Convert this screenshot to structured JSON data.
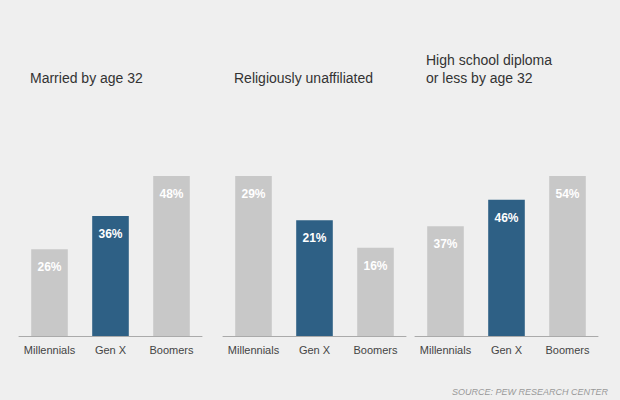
{
  "chart_data": [
    {
      "type": "bar",
      "title": "Married by age 32",
      "categories": [
        "Millennials",
        "Gen X",
        "Boomers"
      ],
      "values": [
        26,
        36,
        48
      ],
      "value_labels": [
        "26%",
        "36%",
        "48%"
      ],
      "colors": [
        "#c8c8c8",
        "#2e6085",
        "#c8c8c8"
      ],
      "ylim": [
        0,
        69.6
      ],
      "grid": false,
      "tick_labels": "x",
      "data_labels": true
    },
    {
      "type": "bar",
      "title": "Religiously unaffiliated",
      "categories": [
        "Millennials",
        "Gen X",
        "Boomers"
      ],
      "values": [
        29,
        21,
        16
      ],
      "value_labels": [
        "29%",
        "21%",
        "16%"
      ],
      "colors": [
        "#c8c8c8",
        "#2e6085",
        "#c8c8c8"
      ],
      "ylim": [
        0,
        42.05
      ],
      "grid": false,
      "tick_labels": "x",
      "data_labels": true
    },
    {
      "type": "bar",
      "title": "High school diploma\nor less by age 32",
      "categories": [
        "Millennials",
        "Gen X",
        "Boomers"
      ],
      "values": [
        37,
        46,
        54
      ],
      "value_labels": [
        "37%",
        "46%",
        "54%"
      ],
      "colors": [
        "#c8c8c8",
        "#2e6085",
        "#c8c8c8"
      ],
      "ylim": [
        0,
        78.3
      ],
      "grid": false,
      "tick_labels": "x",
      "data_labels": true,
      "annotations": [
        "SOURCE: PEW RESEARCH CENTER"
      ]
    }
  ]
}
